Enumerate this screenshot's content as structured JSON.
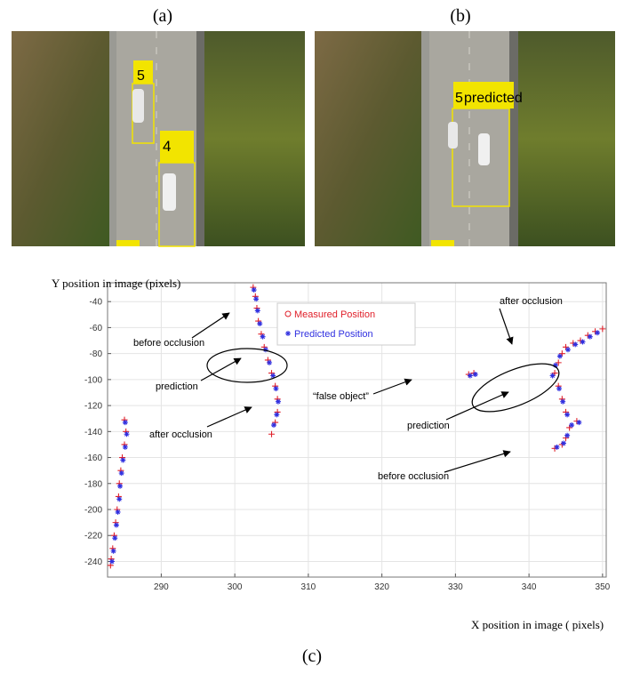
{
  "figure": {
    "panels": [
      "(a)",
      "(b)",
      "(c)"
    ],
    "images": [
      {
        "texts": [
          "5",
          "4"
        ]
      },
      {
        "texts": [
          "5",
          "predicted"
        ]
      }
    ]
  },
  "chart_data": {
    "type": "scatter",
    "xlabel": "X position in image ( pixels)",
    "ylabel": "Y position in image (pixels)",
    "xlim": [
      282.7,
      350.5
    ],
    "ylim": [
      -252,
      -25.5
    ],
    "xticks": [
      290,
      300,
      310,
      320,
      330,
      340,
      350
    ],
    "yticks": [
      -240,
      -220,
      -200,
      -180,
      -160,
      -140,
      -120,
      -100,
      -80,
      -60,
      -40
    ],
    "grid": true,
    "series": [
      {
        "name": "Measured Position",
        "color": "#e0202a",
        "x": [
          285,
          285.2,
          285,
          284.7,
          284.5,
          284.3,
          284.2,
          284,
          283.8,
          283.6,
          283.4,
          283.2,
          283.1,
          302.5,
          302.8,
          303,
          303.2,
          303.6,
          304,
          304.5,
          305,
          305.5,
          305.8,
          305.8,
          305.5,
          305,
          331.8,
          332.5,
          343.5,
          344.5,
          345,
          345.5,
          346.5,
          345,
          344.5,
          344,
          343.5,
          344,
          344.5,
          345,
          346,
          347,
          348,
          349,
          350
        ],
        "values": [
          -131,
          -140,
          -150,
          -160,
          -170,
          -180,
          -190,
          -200,
          -210,
          -220,
          -230,
          -238,
          -243,
          -29,
          -36,
          -45,
          -55,
          -65,
          -75,
          -85,
          -95,
          -105,
          -115,
          -125,
          -133,
          -142,
          -96,
          -95,
          -153,
          -150,
          -145,
          -137,
          -132,
          -125,
          -115,
          -105,
          -95,
          -87,
          -80,
          -75,
          -72,
          -70,
          -66,
          -63,
          -61
        ]
      },
      {
        "name": "Predicted Position",
        "color": "#3030e0",
        "x": [
          285.1,
          285.3,
          285.1,
          284.8,
          284.6,
          284.4,
          284.3,
          284.1,
          283.9,
          283.7,
          283.5,
          283.3,
          302.6,
          302.9,
          303.1,
          303.4,
          303.8,
          304.2,
          304.7,
          305.2,
          305.6,
          305.9,
          305.7,
          305.3,
          332,
          332.7,
          343.8,
          344.7,
          345.2,
          345.8,
          346.8,
          345.2,
          344.6,
          344.1,
          343.2,
          343.6,
          344.2,
          345.3,
          346.3,
          347.3,
          348.3,
          349.3
        ],
        "values": [
          -133,
          -142,
          -152,
          -162,
          -172,
          -182,
          -192,
          -202,
          -212,
          -222,
          -232,
          -240,
          -31,
          -38,
          -47,
          -57,
          -67,
          -77,
          -87,
          -97,
          -107,
          -117,
          -127,
          -135,
          -97,
          -96,
          -152,
          -149,
          -143,
          -135,
          -133,
          -127,
          -117,
          -107,
          -97,
          -89,
          -82,
          -77,
          -73,
          -71,
          -67,
          -64
        ]
      }
    ],
    "annotations": [
      "before occlusion",
      "prediction",
      "after occlusion",
      "“false object”",
      "after occlusion",
      "prediction",
      "before occlusion"
    ]
  }
}
